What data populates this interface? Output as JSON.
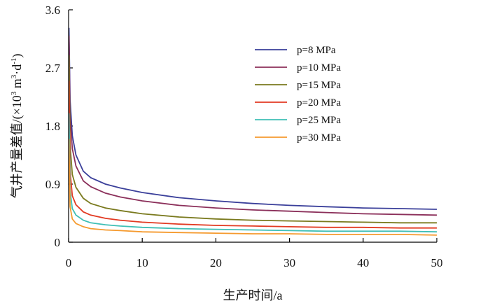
{
  "chart_data": {
    "type": "line",
    "title": "",
    "xlabel": "生产时间/a",
    "ylabel_main": "气井产量差值/(×10",
    "ylabel_sup1": "3",
    "ylabel_mid": " m",
    "ylabel_sup2": "3",
    "ylabel_after": "·d",
    "ylabel_sup3": "-1",
    "ylabel_end": ")",
    "xlim": [
      0,
      50
    ],
    "ylim": [
      0,
      3.6
    ],
    "xticks": [
      "0",
      "10",
      "20",
      "30",
      "40",
      "50"
    ],
    "yticks": [
      "0",
      "0.9",
      "1.8",
      "2.7",
      "3.6"
    ],
    "xtick_values": [
      0,
      10,
      20,
      30,
      40,
      50
    ],
    "ytick_values": [
      0,
      0.9,
      1.8,
      2.7,
      3.6
    ],
    "legend_position": "top-right",
    "grid": false,
    "x": [
      0.05,
      0.2,
      0.5,
      1,
      2,
      3,
      5,
      7,
      10,
      15,
      20,
      25,
      30,
      35,
      40,
      45,
      50
    ],
    "series": [
      {
        "name": "p=8 MPa",
        "color": "#3a3f9a",
        "values": [
          3.32,
          2.2,
          1.65,
          1.35,
          1.1,
          1.0,
          0.9,
          0.84,
          0.77,
          0.69,
          0.64,
          0.6,
          0.57,
          0.55,
          0.53,
          0.52,
          0.51
        ]
      },
      {
        "name": "p=10 MPa",
        "color": "#8b2f5a",
        "values": [
          3.2,
          1.95,
          1.45,
          1.18,
          0.95,
          0.86,
          0.76,
          0.7,
          0.64,
          0.57,
          0.53,
          0.5,
          0.48,
          0.46,
          0.44,
          0.43,
          0.42
        ]
      },
      {
        "name": "p=15 MPa",
        "color": "#7a7a1e",
        "values": [
          2.9,
          1.5,
          1.05,
          0.85,
          0.68,
          0.6,
          0.53,
          0.49,
          0.44,
          0.39,
          0.36,
          0.34,
          0.33,
          0.32,
          0.31,
          0.3,
          0.3
        ]
      },
      {
        "name": "p=20 MPa",
        "color": "#e23a22",
        "values": [
          2.5,
          1.1,
          0.72,
          0.58,
          0.47,
          0.42,
          0.37,
          0.34,
          0.31,
          0.28,
          0.26,
          0.25,
          0.24,
          0.23,
          0.23,
          0.22,
          0.22
        ]
      },
      {
        "name": "p=25 MPa",
        "color": "#3fbfb5",
        "values": [
          2.0,
          0.8,
          0.52,
          0.42,
          0.34,
          0.3,
          0.27,
          0.25,
          0.23,
          0.21,
          0.2,
          0.19,
          0.18,
          0.17,
          0.17,
          0.17,
          0.16
        ]
      },
      {
        "name": "p=30 MPa",
        "color": "#f59a2e",
        "values": [
          1.6,
          0.55,
          0.36,
          0.29,
          0.24,
          0.21,
          0.19,
          0.18,
          0.16,
          0.15,
          0.14,
          0.13,
          0.13,
          0.12,
          0.12,
          0.12,
          0.11
        ]
      }
    ]
  }
}
